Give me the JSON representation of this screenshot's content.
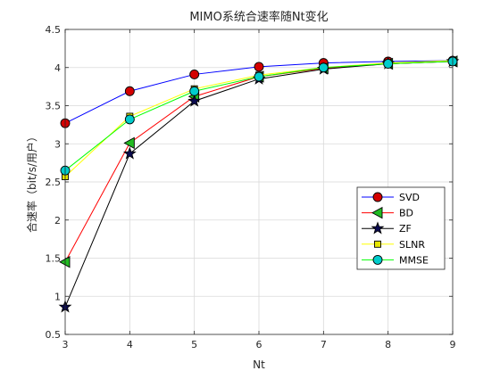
{
  "chart_data": {
    "type": "line",
    "title": "MIMO系统合速率随Nt变化",
    "xlabel": "Nt",
    "ylabel": "合速率（bit/s/用户）",
    "xlim": [
      3,
      9
    ],
    "ylim": [
      0.5,
      4.5
    ],
    "xticks": [
      "3",
      "4",
      "5",
      "6",
      "7",
      "8",
      "9"
    ],
    "yticks": [
      "0.5",
      "1",
      "1.5",
      "2",
      "2.5",
      "3",
      "3.5",
      "4",
      "4.5"
    ],
    "grid": true,
    "legend_position": "lower-right",
    "x": [
      3,
      4,
      5,
      6,
      7,
      8,
      9
    ],
    "series": [
      {
        "name": "SVD",
        "line_color": "#0000ff",
        "marker": "circle",
        "marker_color": "#d40000",
        "values": [
          3.27,
          3.69,
          3.91,
          4.01,
          4.06,
          4.08,
          4.09
        ]
      },
      {
        "name": "BD",
        "line_color": "#ff0000",
        "marker": "triangle-left",
        "marker_color": "#22bb22",
        "values": [
          1.45,
          3.01,
          3.62,
          3.88,
          3.99,
          4.05,
          4.08
        ]
      },
      {
        "name": "ZF",
        "line_color": "#000000",
        "marker": "star",
        "marker_color": "#0a0a50",
        "values": [
          0.86,
          2.87,
          3.56,
          3.85,
          3.98,
          4.05,
          4.08
        ]
      },
      {
        "name": "SLNR",
        "line_color": "#ffff00",
        "marker": "square",
        "marker_color": "#e6e600",
        "values": [
          2.57,
          3.36,
          3.72,
          3.9,
          4.0,
          4.06,
          4.09
        ]
      },
      {
        "name": "MMSE",
        "line_color": "#00ff00",
        "marker": "circle",
        "marker_color": "#00cccc",
        "values": [
          2.65,
          3.32,
          3.69,
          3.88,
          4.0,
          4.05,
          4.08
        ]
      }
    ]
  }
}
